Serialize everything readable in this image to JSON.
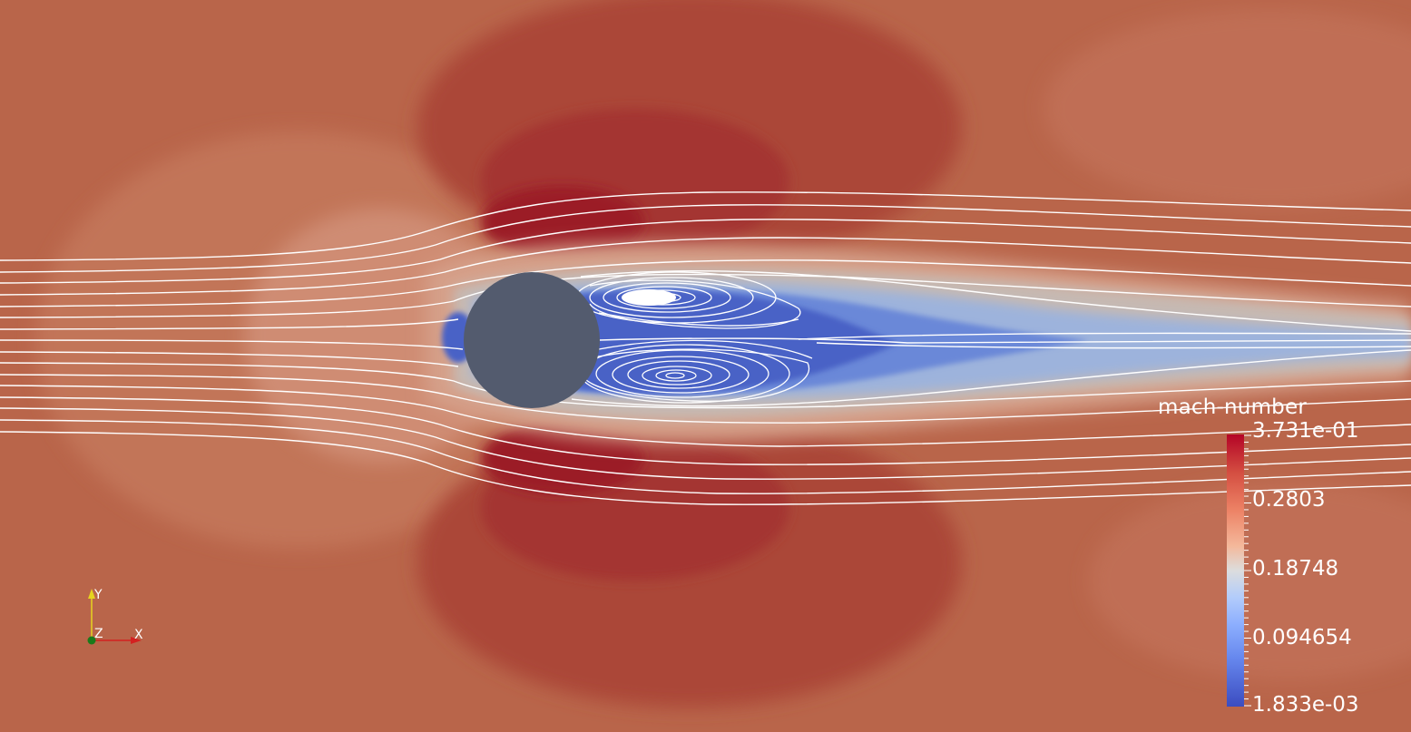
{
  "scene": {
    "colors": {
      "background": "#b9654a",
      "cylinder": "#535b6e",
      "streamline": "#ffffff",
      "high": "#b40426",
      "low": "#3b4cc0"
    }
  },
  "legend": {
    "title": "mach-number",
    "max_label": "3.731e-01",
    "labels": [
      "0.2803",
      "0.18748",
      "0.094654"
    ],
    "min_label": "1.833e-03"
  },
  "axes": {
    "y_label": "Y",
    "z_label": "Z",
    "x_label": "X"
  }
}
